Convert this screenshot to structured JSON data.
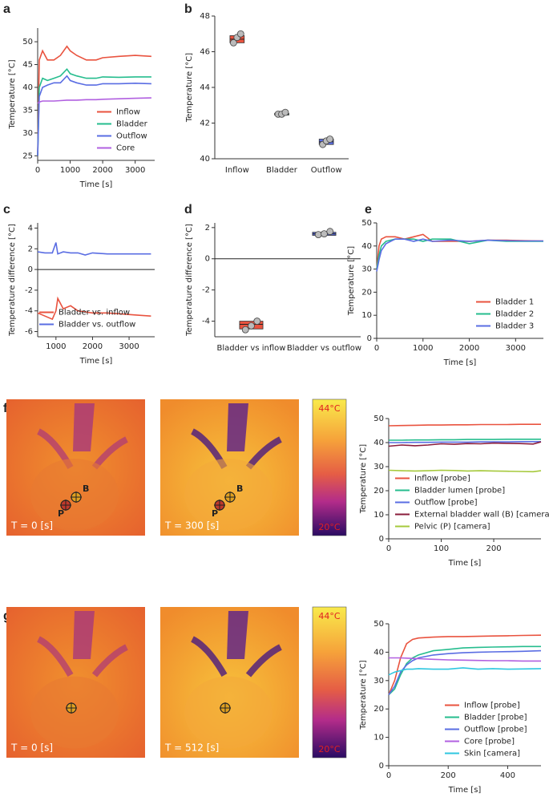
{
  "chart_data": [
    {
      "panel": "a",
      "type": "line",
      "xlabel": "Time [s]",
      "ylabel": "Temperature [°C]",
      "xlim": [
        0,
        3600
      ],
      "xticks": [
        0,
        1000,
        2000,
        3000
      ],
      "ylim": [
        24,
        53
      ],
      "yticks": [
        25,
        30,
        35,
        40,
        45,
        50
      ],
      "legend": "lower right",
      "x": [
        0,
        50,
        150,
        300,
        500,
        700,
        900,
        1000,
        1200,
        1500,
        1800,
        2000,
        2500,
        3000,
        3500
      ],
      "series": [
        {
          "name": "Inflow",
          "color": "#e9533f",
          "values": [
            25,
            46,
            48,
            46,
            46,
            47,
            49,
            48,
            47,
            46,
            46,
            46.5,
            46.8,
            47,
            46.8
          ]
        },
        {
          "name": "Bladder",
          "color": "#26bd8e",
          "values": [
            25,
            40,
            42,
            41.5,
            42,
            42.5,
            44,
            43,
            42.5,
            42,
            42,
            42.3,
            42.2,
            42.3,
            42.3
          ]
        },
        {
          "name": "Outflow",
          "color": "#5a6de3",
          "values": [
            25,
            38,
            40,
            40.5,
            41,
            41,
            42.5,
            41.5,
            41,
            40.5,
            40.5,
            40.8,
            40.8,
            40.9,
            40.8
          ]
        },
        {
          "name": "Core",
          "color": "#b160e0",
          "values": [
            36.5,
            36.8,
            37,
            37,
            37,
            37.1,
            37.2,
            37.2,
            37.2,
            37.3,
            37.3,
            37.4,
            37.5,
            37.6,
            37.7
          ]
        }
      ]
    },
    {
      "panel": "b",
      "type": "box",
      "ylabel": "Temperature [°C]",
      "ylim": [
        40,
        48
      ],
      "yticks": [
        40,
        42,
        44,
        46,
        48
      ],
      "categories": [
        "Inflow",
        "Bladder",
        "Outflow"
      ],
      "colors": [
        "#e9533f",
        "#26bd8e",
        "#5a6de3"
      ],
      "boxes": [
        {
          "q1": 46.5,
          "median": 46.7,
          "q3": 46.9,
          "points": [
            46.5,
            46.8,
            47.0
          ]
        },
        {
          "q1": 42.45,
          "median": 42.5,
          "q3": 42.55,
          "points": [
            42.5,
            42.5,
            42.6
          ]
        },
        {
          "q1": 40.8,
          "median": 40.95,
          "q3": 41.1,
          "points": [
            40.8,
            41.0,
            41.1
          ]
        }
      ]
    },
    {
      "panel": "c",
      "type": "line",
      "xlabel": "Time [s]",
      "ylabel": "Temperature difference [°C]",
      "xlim": [
        500,
        3700
      ],
      "xticks": [
        1000,
        2000,
        3000
      ],
      "ylim": [
        -6.5,
        4.5
      ],
      "yticks": [
        -6,
        -4,
        -2,
        0,
        2,
        4
      ],
      "axhline": 0,
      "legend": "lower right",
      "x": [
        500,
        700,
        900,
        1000,
        1050,
        1200,
        1400,
        1600,
        1800,
        2000,
        2400,
        2800,
        3200,
        3600
      ],
      "series": [
        {
          "name": "Bladder vs. inflow",
          "color": "#e9533f",
          "values": [
            -4.2,
            -4.5,
            -4.8,
            -4.0,
            -2.8,
            -3.8,
            -3.5,
            -4.0,
            -4.1,
            -4.2,
            -4.2,
            -4.3,
            -4.4,
            -4.5
          ]
        },
        {
          "name": "Bladder vs. outflow",
          "color": "#5a6de3",
          "values": [
            1.7,
            1.6,
            1.6,
            2.6,
            1.5,
            1.7,
            1.6,
            1.6,
            1.4,
            1.6,
            1.5,
            1.5,
            1.5,
            1.5
          ]
        }
      ]
    },
    {
      "panel": "d",
      "type": "box",
      "ylabel": "Temperature difference [°C]",
      "ylim": [
        -5,
        2.3
      ],
      "yticks": [
        -4,
        -2,
        0,
        2
      ],
      "axhline": 0,
      "categories": [
        "Bladder vs inflow",
        "Bladder vs outflow"
      ],
      "colors": [
        "#e9533f",
        "#5a6de3"
      ],
      "boxes": [
        {
          "q1": -4.5,
          "median": -4.2,
          "q3": -4.0,
          "points": [
            -4.55,
            -4.3,
            -4.0
          ]
        },
        {
          "q1": 1.5,
          "median": 1.6,
          "q3": 1.7,
          "points": [
            1.55,
            1.6,
            1.75
          ]
        }
      ]
    },
    {
      "panel": "e",
      "type": "line",
      "xlabel": "Time [s]",
      "ylabel": "Temperature [°C]",
      "xlim": [
        0,
        3600
      ],
      "xticks": [
        0,
        1000,
        2000,
        3000
      ],
      "ylim": [
        0,
        50
      ],
      "yticks": [
        0,
        10,
        20,
        30,
        40,
        50
      ],
      "legend": "lower right",
      "x": [
        0,
        50,
        100,
        200,
        400,
        600,
        800,
        1000,
        1200,
        1600,
        2000,
        2400,
        2800,
        3200,
        3600
      ],
      "series": [
        {
          "name": "Bladder 1",
          "color": "#e9533f",
          "values": [
            30,
            40,
            43,
            44,
            44,
            43,
            44,
            45,
            42,
            42,
            42,
            42.5,
            42.5,
            42.3,
            42.2
          ]
        },
        {
          "name": "Bladder 2",
          "color": "#26bd8e",
          "values": [
            30,
            36,
            40,
            42,
            43,
            43,
            43,
            42,
            43,
            43,
            41,
            42.5,
            42,
            42,
            42
          ]
        },
        {
          "name": "Bladder 3",
          "color": "#5a6de3",
          "values": [
            29,
            34,
            38,
            41,
            43,
            43,
            42,
            43,
            42,
            42.5,
            42,
            42.5,
            42.3,
            42.2,
            42.2
          ]
        }
      ]
    },
    {
      "type": "line",
      "xlabel": "Time [s]",
      "ylabel": "Temperature [°C]",
      "xlim": [
        0,
        290
      ],
      "xticks": [
        0,
        100,
        200
      ],
      "ylim": [
        0,
        50
      ],
      "yticks": [
        0,
        10,
        20,
        30,
        40,
        50
      ],
      "legend": "lower left",
      "x": [
        0,
        25,
        50,
        75,
        100,
        125,
        150,
        175,
        200,
        225,
        250,
        275,
        290
      ],
      "series": [
        {
          "name": "Inflow [probe]",
          "color": "#e9533f",
          "values": [
            47,
            47.1,
            47.2,
            47.3,
            47.3,
            47.4,
            47.4,
            47.5,
            47.5,
            47.5,
            47.6,
            47.6,
            47.6
          ]
        },
        {
          "name": "Bladder lumen [probe]",
          "color": "#26bd8e",
          "values": [
            41,
            41,
            41.1,
            41.1,
            41.2,
            41.2,
            41.3,
            41.3,
            41.3,
            41.4,
            41.4,
            41.4,
            41.4
          ]
        },
        {
          "name": "Outflow [probe]",
          "color": "#5a6de3",
          "values": [
            40,
            40,
            40.1,
            40.1,
            40.2,
            40.2,
            40.2,
            40.3,
            40.3,
            40.3,
            40.4,
            40.4,
            40.4
          ]
        },
        {
          "name": "External bladder wall (B) [camera]",
          "color": "#8a1c3b",
          "values": [
            38.5,
            39,
            38.7,
            39,
            39.5,
            39.3,
            39.6,
            39.5,
            39.8,
            39.7,
            39.6,
            39.4,
            40.3
          ]
        },
        {
          "name": "Pelvic (P) [camera]",
          "color": "#a6c93c",
          "values": [
            28.5,
            28.3,
            28.2,
            28.3,
            28.5,
            28.4,
            28.2,
            28.3,
            28.2,
            28.1,
            28,
            27.9,
            28.3
          ]
        }
      ]
    },
    {
      "type": "line",
      "xlabel": "Time [s]",
      "ylabel": "Temperature [°C]",
      "xlim": [
        0,
        512
      ],
      "xticks": [
        0,
        200,
        400
      ],
      "ylim": [
        0,
        50
      ],
      "yticks": [
        0,
        10,
        20,
        30,
        40,
        50
      ],
      "legend": "lower right",
      "x": [
        0,
        20,
        40,
        60,
        80,
        100,
        150,
        200,
        250,
        300,
        350,
        400,
        450,
        512
      ],
      "series": [
        {
          "name": "Inflow [probe]",
          "color": "#e9533f",
          "values": [
            25,
            30,
            38,
            43,
            44.5,
            45,
            45.3,
            45.5,
            45.5,
            45.6,
            45.7,
            45.8,
            45.9,
            46
          ]
        },
        {
          "name": "Bladder [probe]",
          "color": "#26bd8e",
          "values": [
            25,
            27,
            32,
            36,
            38,
            39,
            40.5,
            41,
            41.5,
            41.7,
            41.8,
            41.9,
            42,
            42
          ]
        },
        {
          "name": "Outflow [probe]",
          "color": "#5a6de3",
          "values": [
            25,
            28,
            33,
            35.5,
            37,
            38,
            39,
            39.5,
            39.8,
            40,
            40.1,
            40.2,
            40.3,
            40.5
          ]
        },
        {
          "name": "Core [probe]",
          "color": "#b160e0",
          "values": [
            38,
            38,
            38,
            37.9,
            37.8,
            37.7,
            37.5,
            37.3,
            37.2,
            37.1,
            37,
            37,
            36.9,
            36.9
          ]
        },
        {
          "name": "Skin [camera]",
          "color": "#2fc7e0",
          "values": [
            32,
            33,
            33.5,
            34,
            34,
            34.2,
            34,
            34,
            34.5,
            34,
            34.2,
            34,
            34.1,
            34.2
          ]
        }
      ]
    }
  ],
  "thermal": [
    {
      "panel": "f",
      "images": [
        {
          "label": "T = 0 [s]",
          "markers": [
            "P",
            "B"
          ]
        },
        {
          "label": "T = 300 [s]",
          "markers": [
            "P",
            "B"
          ]
        }
      ],
      "colorbar": {
        "max_label": "44°C",
        "min_label": "20°C"
      }
    },
    {
      "panel": "g",
      "images": [
        {
          "label": "T = 0 [s]"
        },
        {
          "label": "T = 512 [s]"
        }
      ],
      "colorbar": {
        "max_label": "44°C",
        "min_label": "20°C"
      }
    }
  ]
}
